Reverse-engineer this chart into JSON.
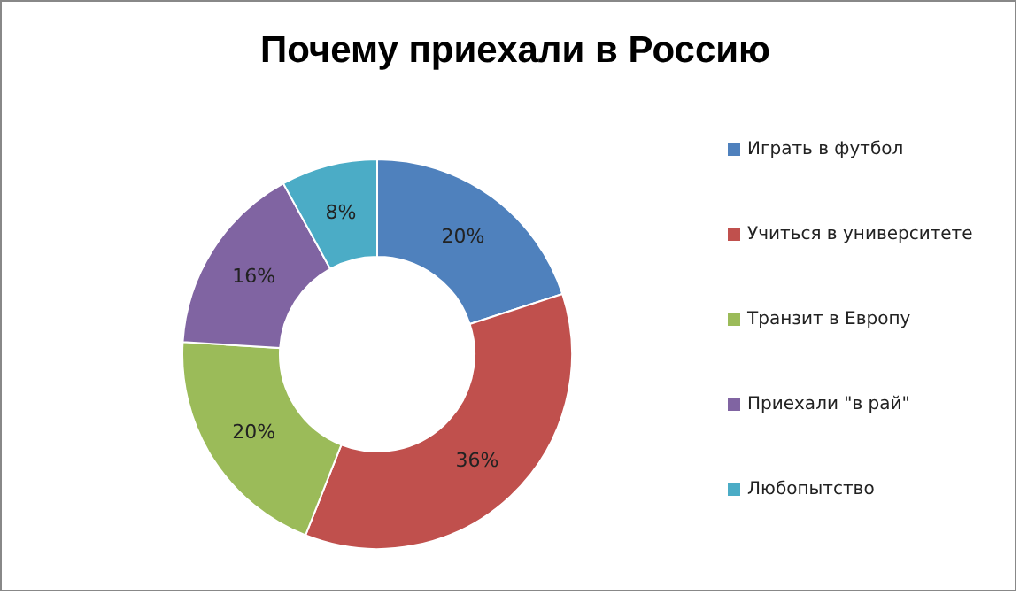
{
  "chart_data": {
    "type": "donut",
    "title": "Почему приехали в Россию",
    "categories": [
      "Играть в футбол",
      "Учиться  в университете",
      "Транзит в Европу",
      "Приехали \"в рай\"",
      "Любопытство"
    ],
    "values": [
      20,
      36,
      20,
      16,
      8
    ],
    "value_labels": [
      "20%",
      "36%",
      "20%",
      "16%",
      "8%"
    ],
    "colors": [
      "#4f81bd",
      "#c0504d",
      "#9bbb59",
      "#8064a2",
      "#4bacc6"
    ],
    "legend": "right"
  }
}
